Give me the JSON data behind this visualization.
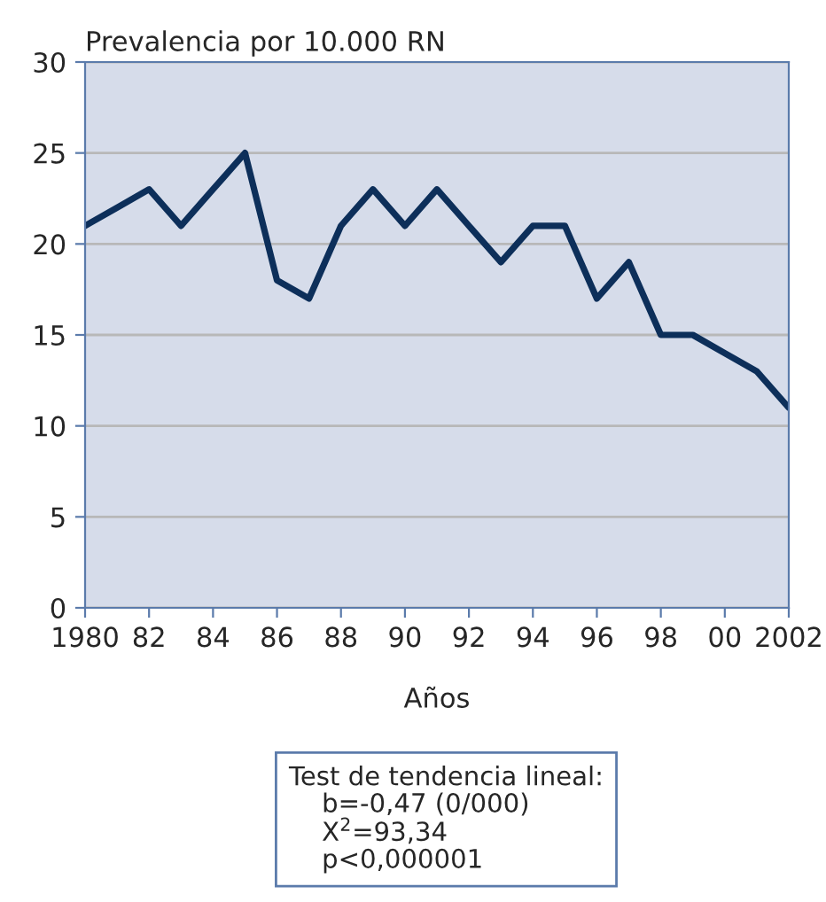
{
  "chart_data": {
    "type": "line",
    "ylabel": "Prevalencia por 10.000 RN",
    "xlabel": "Años",
    "x": [
      1980,
      1981,
      1982,
      1983,
      1984,
      1985,
      1986,
      1987,
      1988,
      1989,
      1990,
      1991,
      1992,
      1993,
      1994,
      1995,
      1996,
      1997,
      1998,
      1999,
      2000,
      2001,
      2002
    ],
    "series": [
      {
        "color": "#0d2f5a",
        "values": [
          21,
          22,
          23,
          21,
          23,
          25,
          18,
          17,
          21,
          23,
          21,
          23,
          21,
          19,
          21,
          21,
          17,
          19,
          15,
          15,
          14,
          13,
          11
        ]
      }
    ],
    "xlim": [
      1980,
      2002
    ],
    "xticks": [
      1980,
      {
        "value": 1982,
        "label": "82"
      },
      {
        "value": 1984,
        "label": "84"
      },
      {
        "value": 1986,
        "label": "86"
      },
      {
        "value": 1988,
        "label": "88"
      },
      {
        "value": 1990,
        "label": "90"
      },
      {
        "value": 1992,
        "label": "92"
      },
      {
        "value": 1994,
        "label": "94"
      },
      {
        "value": 1996,
        "label": "96"
      },
      {
        "value": 1998,
        "label": "98"
      },
      {
        "value": 2000,
        "label": "00"
      },
      2002
    ],
    "ylim": [
      0,
      30
    ],
    "yticks": [
      0,
      5,
      10,
      15,
      20,
      25,
      30
    ],
    "grid": "y",
    "marker": "none",
    "line_style": "solid",
    "annotations": [
      "Test de tendencia lineal:\n    b=-0,47 (0/000)\n    X$^{2}$=93,34\n    p<0,000001"
    ]
  }
}
